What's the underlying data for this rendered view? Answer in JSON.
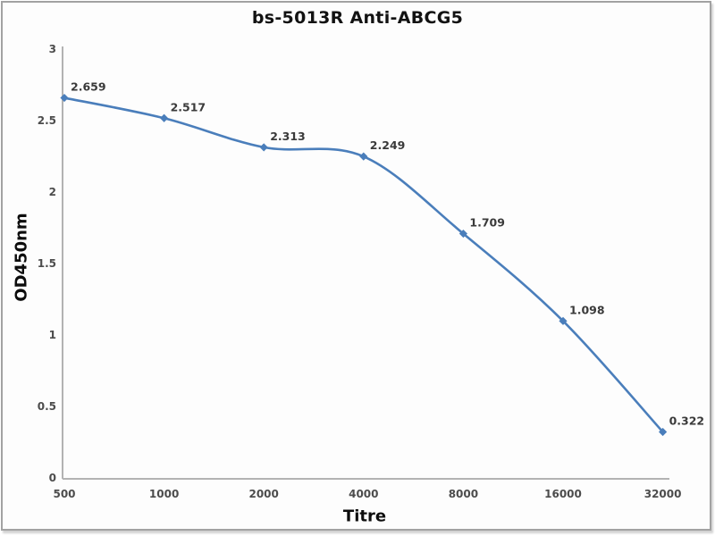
{
  "chart_data": {
    "type": "line",
    "title": "bs-5013R Anti-ABCG5",
    "xlabel": "Titre",
    "ylabel": "OD450nm",
    "categories": [
      500,
      1000,
      2000,
      4000,
      8000,
      16000,
      32000
    ],
    "x_tick_labels": [
      "500",
      "1000",
      "2000",
      "4000",
      "8000",
      "16000",
      "32000"
    ],
    "series": [
      {
        "name": "OD450nm",
        "values": [
          2.659,
          2.517,
          2.313,
          2.249,
          1.709,
          1.098,
          0.322
        ],
        "point_labels": [
          "2.659",
          "2.517",
          "2.313",
          "2.249",
          "1.709",
          "1.098",
          "0.322"
        ]
      }
    ],
    "y_ticks": [
      0,
      0.5,
      1,
      1.5,
      2,
      2.5,
      3
    ],
    "y_tick_labels": [
      "0",
      "0.5",
      "1",
      "1.5",
      "2",
      "2.5",
      "3"
    ],
    "ylim": [
      0,
      3
    ],
    "grid": false,
    "legend_position": "none",
    "line_style": "smooth",
    "marker": "diamond",
    "colors": {
      "line": "#4a7ebb",
      "marker": "#4a7ebb",
      "axis": "#b3b3b3",
      "tick_text": "#4c4c4c",
      "data_label": "#3a3a3a"
    }
  }
}
